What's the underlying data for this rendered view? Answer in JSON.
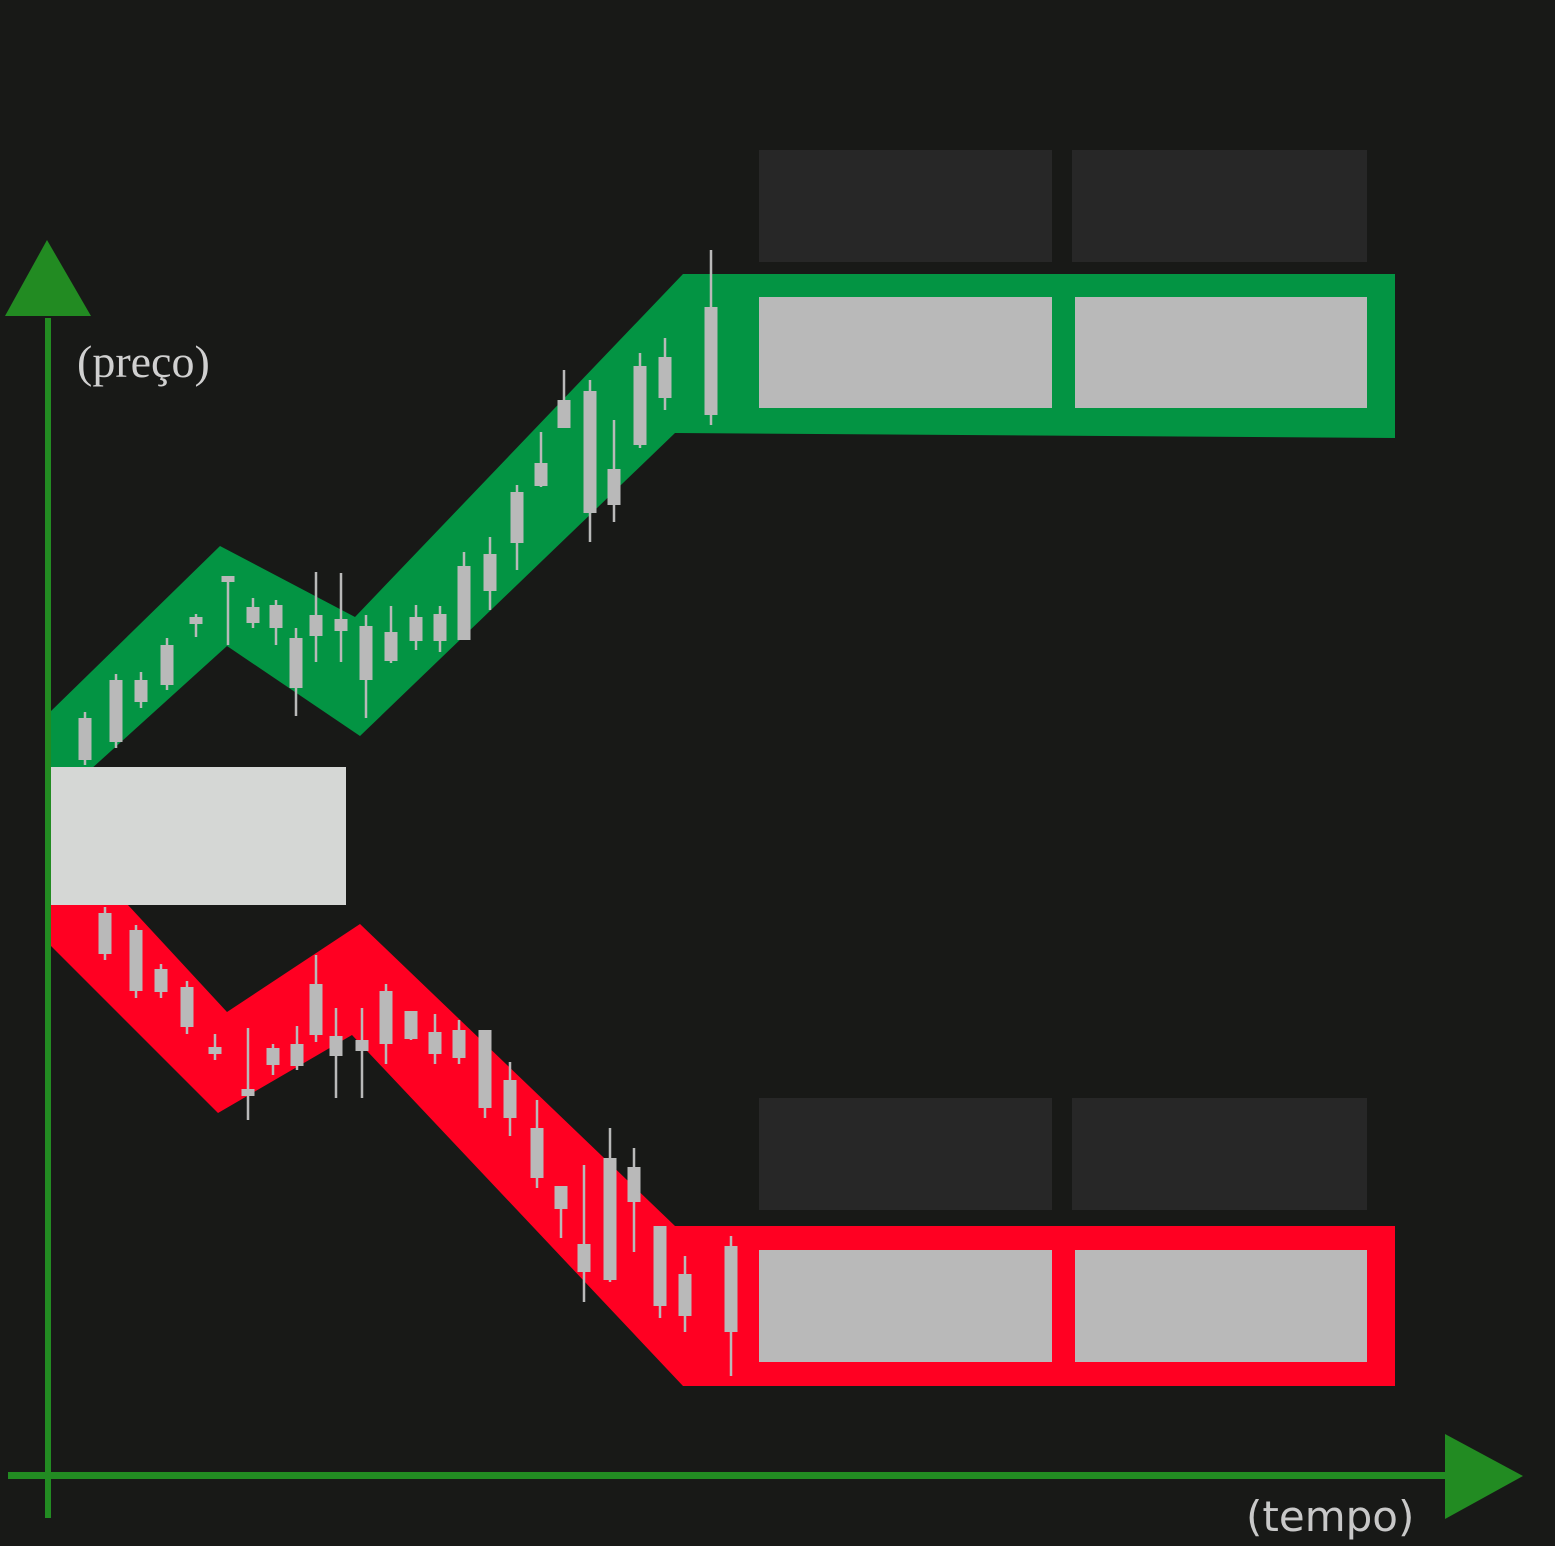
{
  "axes": {
    "y_label": "(preço)",
    "x_label": "(tempo)",
    "color": "#228b22"
  },
  "colors": {
    "background": "#181917",
    "bullish_channel": "#039443",
    "bearish_channel": "#ff0022",
    "candle": "#b9b9b9",
    "consolidation_box": "#d5d7d5",
    "target_box": "#b9b9b9",
    "placeholder_box": "#272727"
  }
}
